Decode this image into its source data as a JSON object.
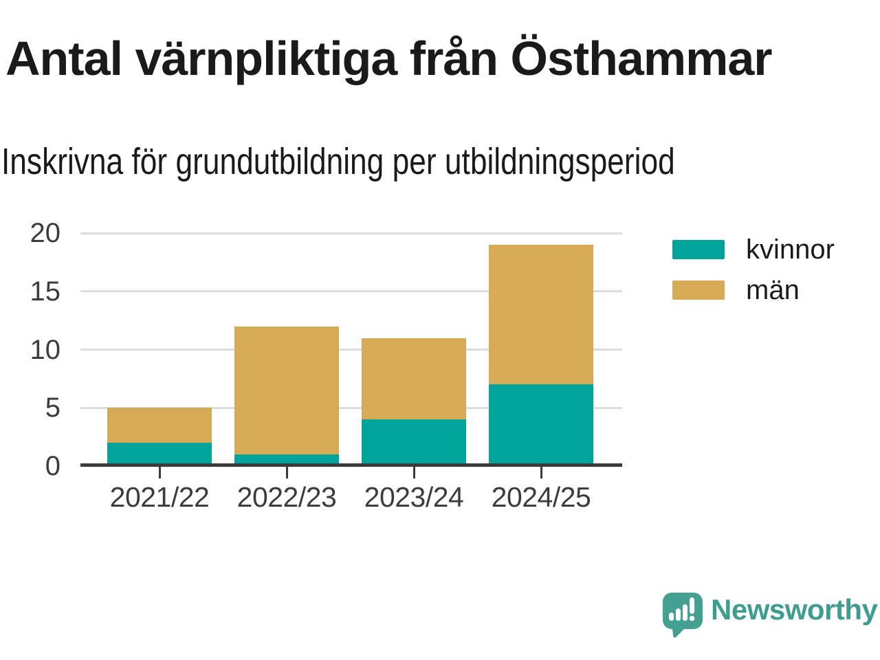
{
  "header": {
    "title": "Antal värnpliktiga från Östhammar",
    "subtitle": "Inskrivna för grundutbildning per utbildningsperiod"
  },
  "chart_data": {
    "type": "bar",
    "stacked": true,
    "title": "Antal värnpliktiga från Östhammar",
    "subtitle": "Inskrivna för grundutbildning per utbildningsperiod",
    "categories": [
      "2021/22",
      "2022/23",
      "2023/24",
      "2024/25"
    ],
    "series": [
      {
        "name": "kvinnor",
        "color": "#00A49B",
        "values": [
          2,
          1,
          4,
          7
        ]
      },
      {
        "name": "män",
        "color": "#D7AA56",
        "values": [
          3,
          11,
          7,
          12
        ]
      }
    ],
    "stack_totals": [
      5,
      12,
      11,
      19
    ],
    "xlabel": "",
    "ylabel": "",
    "ylim": [
      0,
      20
    ],
    "yticks": [
      0,
      5,
      10,
      15,
      20
    ],
    "grid": "horizontal",
    "legend_position": "right-top"
  },
  "footer": {
    "brand": "Newsworthy",
    "logo_icon": "speech-bubble-bar-chart-exclamation",
    "logo_color": "#44A191",
    "brand_text_color": "#3F9D90"
  },
  "colors": {
    "background": "#FFFFFF",
    "axis": "#3B3B3B",
    "grid": "#DCDCDC",
    "tick_label": "#3C3C3C",
    "title": "#1A1A1A"
  }
}
